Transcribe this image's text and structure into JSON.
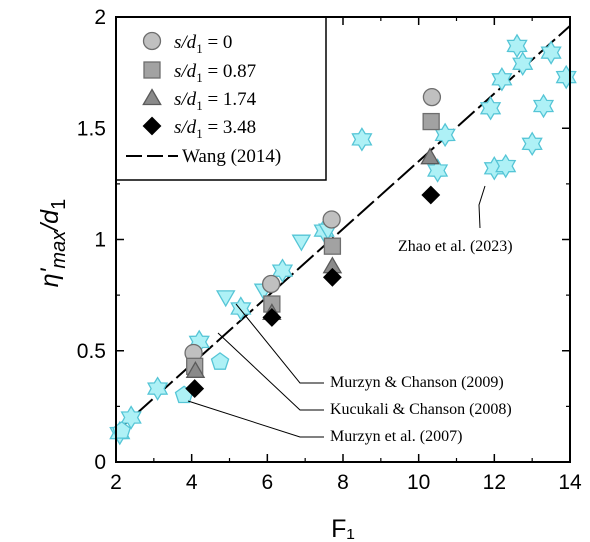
{
  "chart_data": {
    "type": "scatter",
    "xlabel": "F₁",
    "ylabel_main": "η'",
    "ylabel_sub": "max",
    "ylabel_tail": "/d",
    "ylabel_tail_sub": "1",
    "xlim": [
      2,
      14
    ],
    "ylim": [
      0,
      2
    ],
    "xticks": [
      "2",
      "4",
      "6",
      "8",
      "10",
      "12",
      "14"
    ],
    "yticks": [
      "0",
      "0.5",
      "1",
      "1.5",
      "2"
    ],
    "legend_position": "top-left",
    "series": [
      {
        "name": "s/d₁ = 0",
        "label_var": "s/d",
        "label_sub": "1",
        "label_val": " = 0",
        "marker": "circle",
        "color": "#c0c0c0",
        "stroke": "#6e6e6e",
        "x": [
          4.05,
          6.1,
          7.7,
          10.35
        ],
        "y": [
          0.49,
          0.8,
          1.09,
          1.64
        ]
      },
      {
        "name": "s/d₁ = 0.87",
        "label_var": "s/d",
        "label_sub": "1",
        "label_val": " = 0.87",
        "marker": "square",
        "color": "#a2a2a2",
        "stroke": "#6e6e6e",
        "x": [
          4.08,
          6.12,
          7.72,
          10.33
        ],
        "y": [
          0.43,
          0.71,
          0.97,
          1.53
        ]
      },
      {
        "name": "s/d₁ = 1.74",
        "label_var": "s/d",
        "label_sub": "1",
        "label_val": " = 1.74",
        "marker": "triangle",
        "color": "#8a8a8a",
        "stroke": "#5a5a5a",
        "x": [
          4.1,
          6.12,
          7.72,
          10.3
        ],
        "y": [
          0.41,
          0.67,
          0.88,
          1.37
        ]
      },
      {
        "name": "s/d₁ = 3.48",
        "label_var": "s/d",
        "label_sub": "1",
        "label_val": " = 3.48",
        "marker": "diamond",
        "color": "#000000",
        "stroke": "#000000",
        "x": [
          4.08,
          6.12,
          7.72,
          10.32
        ],
        "y": [
          0.33,
          0.65,
          0.83,
          1.2
        ]
      },
      {
        "name": "Zhao et al. (2023)",
        "marker": "star6",
        "color": "#aef1f6",
        "stroke": "#55c5d6",
        "x": [
          2.1,
          2.4,
          3.1,
          4.2,
          5.3,
          6.4,
          7.5,
          8.5,
          10.5,
          10.7,
          11.9,
          12.0,
          12.3,
          12.2,
          12.6,
          12.75,
          13.0,
          13.3,
          13.5,
          13.9
        ],
        "y": [
          0.13,
          0.2,
          0.33,
          0.54,
          0.69,
          0.86,
          1.04,
          1.45,
          1.31,
          1.47,
          1.59,
          1.32,
          1.33,
          1.72,
          1.87,
          1.79,
          1.43,
          1.6,
          1.84,
          1.73
        ]
      },
      {
        "name": "Murzyn & Chanson (2009)",
        "marker": "triangle-down",
        "color": "#aef1f6",
        "stroke": "#55c5d6",
        "x": [
          4.9,
          5.9,
          6.9,
          7.6
        ],
        "y": [
          0.74,
          0.77,
          0.99,
          1.04
        ]
      },
      {
        "name": "Kucukali & Chanson (2008)",
        "marker": "pentagon",
        "color": "#aef1f6",
        "stroke": "#55c5d6",
        "x": [
          2.15,
          3.8,
          4.75
        ],
        "y": [
          0.14,
          0.3,
          0.45
        ]
      }
    ],
    "fit_line": {
      "name": "Wang (2014)",
      "x": [
        2,
        14
      ],
      "y": [
        0.135,
        1.96
      ]
    },
    "annotations": [
      {
        "text": "Zhao et al. (2023)"
      },
      {
        "text": "Murzyn & Chanson (2009)"
      },
      {
        "text": "Kucukali & Chanson (2008)"
      },
      {
        "text": "Murzyn et al. (2007)"
      }
    ]
  }
}
